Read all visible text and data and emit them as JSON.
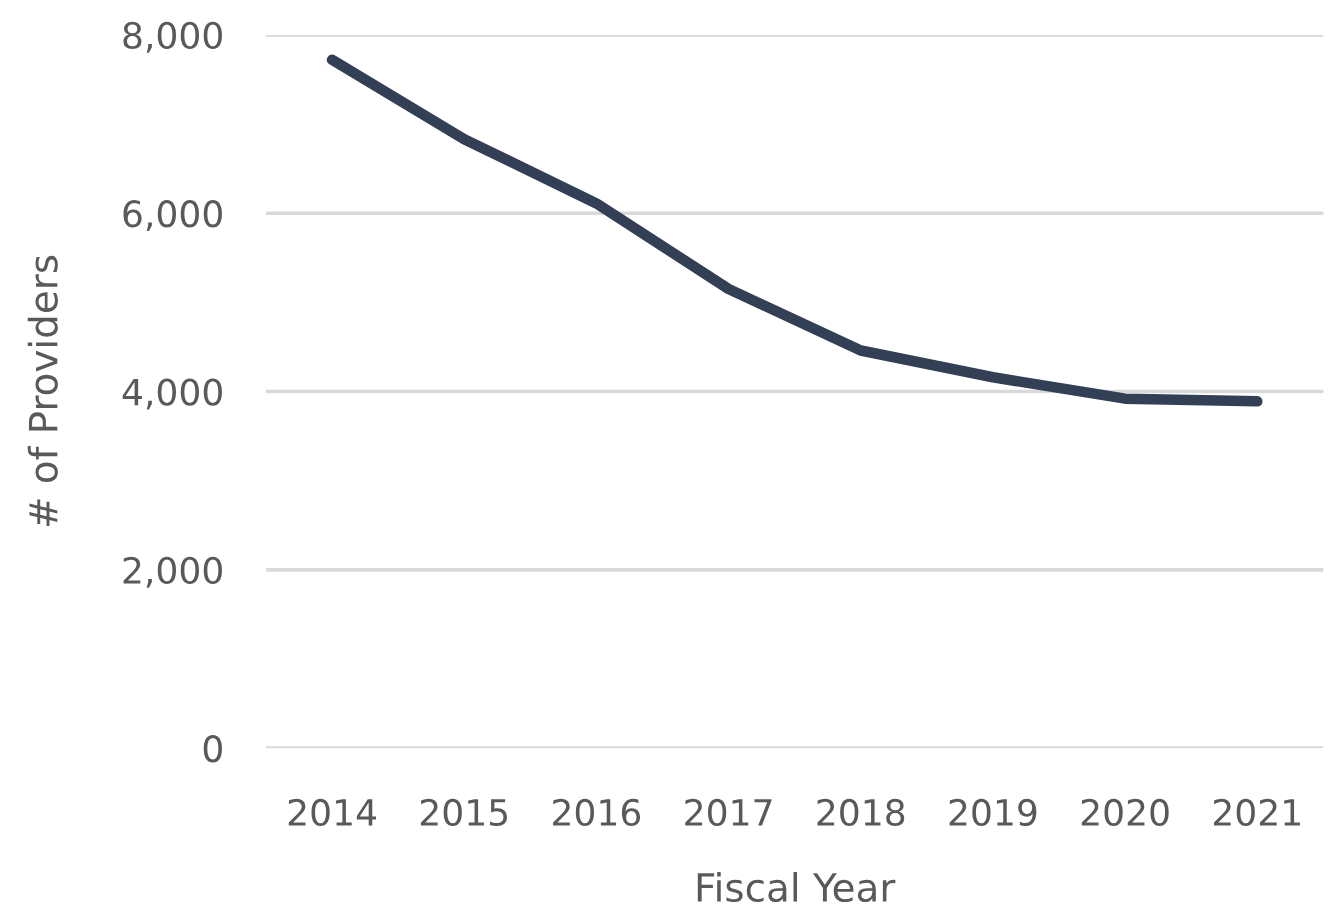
{
  "chart_data": {
    "type": "line",
    "xlabel": "Fiscal Year",
    "ylabel": "# of Providers",
    "categories": [
      "2014",
      "2015",
      "2016",
      "2017",
      "2018",
      "2019",
      "2020",
      "2021"
    ],
    "series": [
      {
        "color": "#323f55",
        "values": [
          7720,
          6830,
          6110,
          5150,
          4460,
          4160,
          3920,
          3890
        ]
      }
    ],
    "ylim": [
      0,
      8000
    ],
    "yticks": [
      0,
      {
        "value": 2000,
        "label": "2,000"
      },
      {
        "value": 4000,
        "label": "4,000"
      },
      {
        "value": 6000,
        "label": "6,000"
      },
      {
        "value": 8000,
        "label": "8,000"
      }
    ],
    "grid": "y",
    "marker": "none",
    "line_style": "solid"
  }
}
